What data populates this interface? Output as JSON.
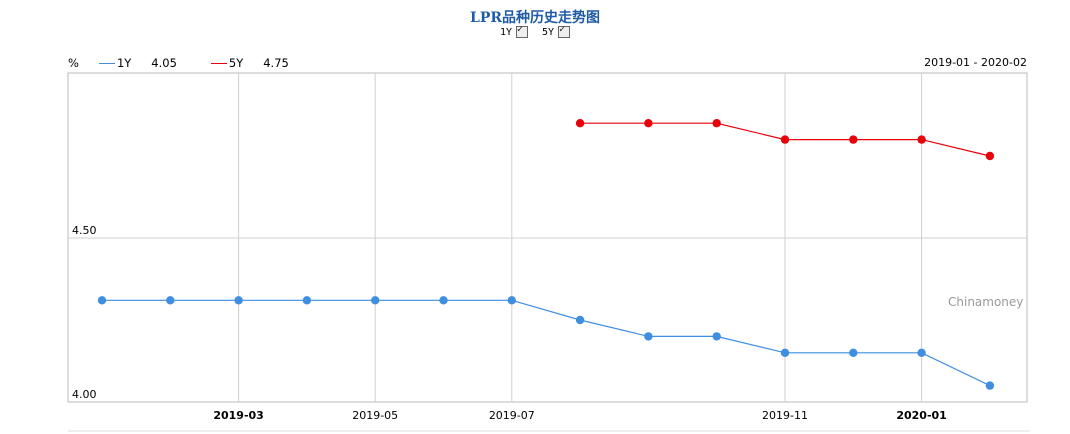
{
  "header": {
    "title": "LPR品种历史走势图",
    "toggles": [
      {
        "label": "1Y",
        "checked": true
      },
      {
        "label": "5Y",
        "checked": true
      }
    ]
  },
  "legend": {
    "unit": "%",
    "items": [
      {
        "name": "1Y",
        "value": "4.05",
        "color": "#3f8ee0"
      },
      {
        "name": "5Y",
        "value": "4.75",
        "color": "#e8000a"
      }
    ]
  },
  "range": {
    "start": "2019-01",
    "sep": "-",
    "end": "2020-02"
  },
  "watermark": "Chinamoney",
  "chart_data": {
    "type": "line",
    "x": [
      "2019-01",
      "2019-02",
      "2019-03",
      "2019-04",
      "2019-05",
      "2019-06",
      "2019-07",
      "2019-08",
      "2019-09",
      "2019-10",
      "2019-11",
      "2019-12",
      "2020-01",
      "2020-02"
    ],
    "xtick_labels": [
      {
        "x": "2019-03",
        "label": "2019-03",
        "bold": true
      },
      {
        "x": "2019-05",
        "label": "2019-05",
        "bold": false
      },
      {
        "x": "2019-07",
        "label": "2019-07",
        "bold": false
      },
      {
        "x": "2019-11",
        "label": "2019-11",
        "bold": false
      },
      {
        "x": "2020-01",
        "label": "2020-01",
        "bold": true
      }
    ],
    "ytick_labels": [
      {
        "y": 4.0,
        "label": "4.00"
      },
      {
        "y": 4.5,
        "label": "4.50"
      }
    ],
    "ylim": [
      4.0,
      5.0
    ],
    "series": [
      {
        "name": "1Y",
        "color": "#3f8ee0",
        "values": [
          4.31,
          4.31,
          4.31,
          4.31,
          4.31,
          4.31,
          4.31,
          4.25,
          4.2,
          4.2,
          4.15,
          4.15,
          4.15,
          4.05
        ]
      },
      {
        "name": "5Y",
        "color": "#e8000a",
        "values": [
          null,
          null,
          null,
          null,
          null,
          null,
          null,
          4.85,
          4.85,
          4.85,
          4.8,
          4.8,
          4.8,
          4.75
        ]
      }
    ]
  }
}
